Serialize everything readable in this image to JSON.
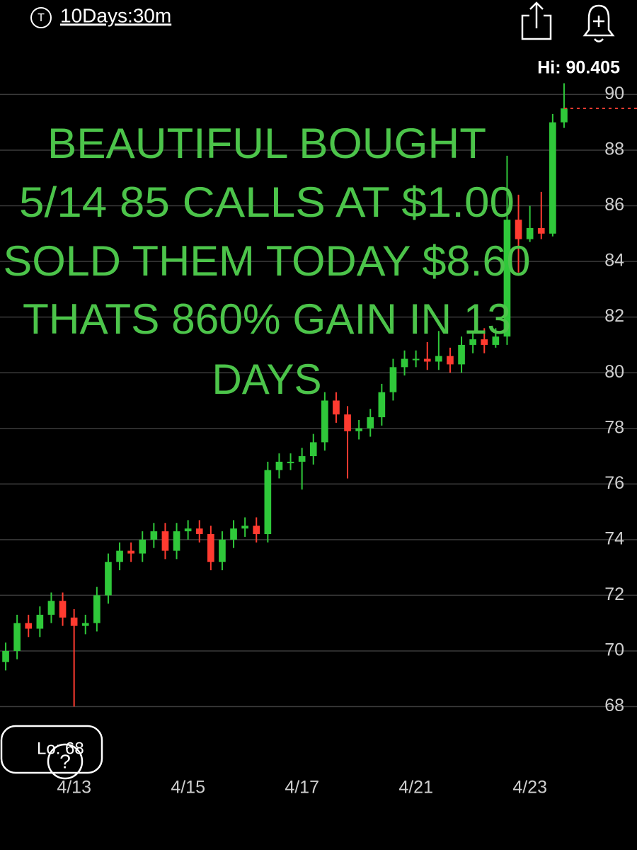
{
  "header": {
    "interval": "10Days:30m",
    "hi_label": "Hi: 90.405",
    "lo_label": "Lo: 68"
  },
  "chart_data": {
    "type": "candlestick",
    "annotation": [
      "BEAUTIFUL BOUGHT",
      "5/14 85 CALLS AT $1.00",
      "SOLD THEM TODAY $8.60",
      "THATS 860% GAIN IN 13",
      "DAYS"
    ],
    "categories": [
      null,
      null,
      null,
      null,
      null,
      null,
      "4/13",
      null,
      null,
      null,
      null,
      null,
      null,
      null,
      null,
      null,
      "4/15",
      null,
      null,
      null,
      null,
      null,
      null,
      null,
      null,
      null,
      "4/17",
      null,
      null,
      null,
      null,
      null,
      null,
      null,
      null,
      null,
      "4/21",
      null,
      null,
      null,
      null,
      null,
      null,
      null,
      null,
      null,
      "4/23",
      null,
      null,
      null
    ],
    "open": [
      69.6,
      70.0,
      71.0,
      70.8,
      71.3,
      71.8,
      71.2,
      70.9,
      71.0,
      72.0,
      73.2,
      73.6,
      73.5,
      74.0,
      74.3,
      73.6,
      74.3,
      74.4,
      74.2,
      73.2,
      74.0,
      74.4,
      74.5,
      74.2,
      76.5,
      76.8,
      76.8,
      77.0,
      77.5,
      79.0,
      78.5,
      77.9,
      78.0,
      78.4,
      79.3,
      80.2,
      80.5,
      80.5,
      80.4,
      80.6,
      80.3,
      81.0,
      81.2,
      81.0,
      81.3,
      85.5,
      84.8,
      85.2,
      85.0,
      89.0
    ],
    "high": [
      70.3,
      71.3,
      71.3,
      71.6,
      72.1,
      72.1,
      71.5,
      71.3,
      72.3,
      73.5,
      73.9,
      73.9,
      74.3,
      74.6,
      74.6,
      74.6,
      74.7,
      74.7,
      74.5,
      74.3,
      74.7,
      74.8,
      74.8,
      76.8,
      77.1,
      77.1,
      77.3,
      77.8,
      79.3,
      79.3,
      78.8,
      78.3,
      78.7,
      79.6,
      80.5,
      80.8,
      80.8,
      81.1,
      81.5,
      80.9,
      81.3,
      81.5,
      81.6,
      81.6,
      87.8,
      86.4,
      86.0,
      86.5,
      89.3,
      90.405
    ],
    "low": [
      69.3,
      69.7,
      70.5,
      70.5,
      71.0,
      70.9,
      68.0,
      70.6,
      70.7,
      71.7,
      72.9,
      73.2,
      73.2,
      73.7,
      73.3,
      73.3,
      74.0,
      73.9,
      72.9,
      72.9,
      73.7,
      74.1,
      73.9,
      73.9,
      76.2,
      76.5,
      75.8,
      76.7,
      77.2,
      78.2,
      76.2,
      77.6,
      77.7,
      78.1,
      79.0,
      79.9,
      80.2,
      80.1,
      80.1,
      80.0,
      80.0,
      80.7,
      80.7,
      80.9,
      81.0,
      83.6,
      84.7,
      84.8,
      84.9,
      88.8
    ],
    "close": [
      70.0,
      71.0,
      70.8,
      71.3,
      71.8,
      71.2,
      70.9,
      71.0,
      72.0,
      73.2,
      73.6,
      73.5,
      74.0,
      74.3,
      73.6,
      74.3,
      74.4,
      74.2,
      73.2,
      74.0,
      74.4,
      74.5,
      74.2,
      76.5,
      76.8,
      76.8,
      77.0,
      77.5,
      79.0,
      78.5,
      77.9,
      78.0,
      78.4,
      79.3,
      80.2,
      80.5,
      80.5,
      80.4,
      80.6,
      80.3,
      81.0,
      81.2,
      81.0,
      81.3,
      85.5,
      84.8,
      85.2,
      85.0,
      89.0,
      89.5
    ],
    "up_color": "#2fc83a",
    "down_color": "#ff3b30",
    "annotation_color": "#4cc44a",
    "ylim": [
      65.9,
      90.8
    ],
    "yticks": [
      68,
      70,
      72,
      74,
      76,
      78,
      80,
      82,
      84,
      86,
      88,
      90
    ],
    "grid": true
  }
}
